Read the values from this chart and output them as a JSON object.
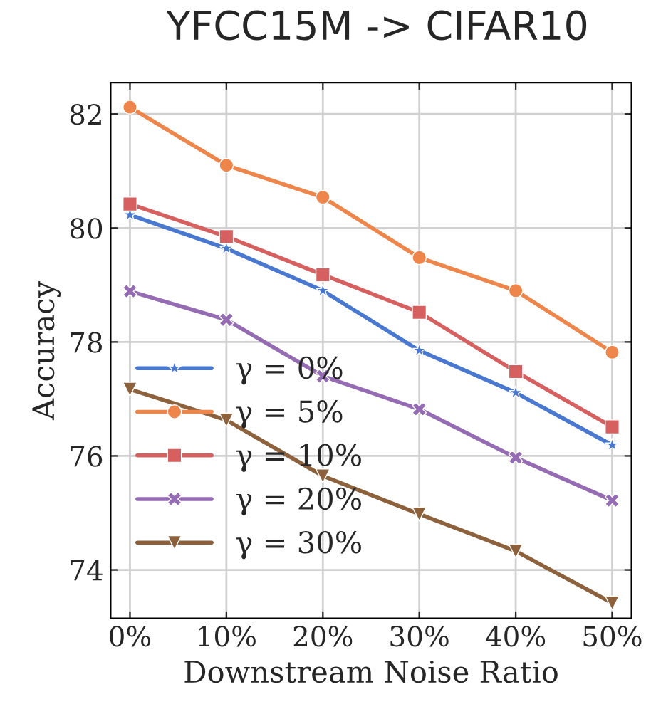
{
  "chart_data": {
    "type": "line",
    "title": "YFCC15M -> CIFAR10",
    "xlabel": "Downstream Noise Ratio",
    "ylabel": "Accuracy",
    "categories": [
      "0%",
      "10%",
      "20%",
      "30%",
      "40%",
      "50%"
    ],
    "series": [
      {
        "name": "γ = 0%",
        "color": "#4878d0",
        "marker": "star",
        "values": [
          80.23,
          79.64,
          78.9,
          77.85,
          77.11,
          76.19
        ]
      },
      {
        "name": "γ = 5%",
        "color": "#ee854a",
        "marker": "circle",
        "values": [
          82.12,
          81.1,
          80.54,
          79.48,
          78.9,
          77.82
        ]
      },
      {
        "name": "γ = 10%",
        "color": "#d65f5f",
        "marker": "square",
        "values": [
          80.42,
          79.85,
          79.18,
          78.52,
          77.48,
          76.51
        ]
      },
      {
        "name": "γ = 20%",
        "color": "#956cb4",
        "marker": "cross",
        "values": [
          78.89,
          78.39,
          77.4,
          76.82,
          75.97,
          75.22
        ]
      },
      {
        "name": "γ = 30%",
        "color": "#8c613c",
        "marker": "triangle",
        "values": [
          77.17,
          76.63,
          75.65,
          74.98,
          74.33,
          73.42
        ]
      }
    ],
    "ylim": [
      73.15,
      82.55
    ],
    "yticks": [
      74,
      76,
      78,
      80,
      82
    ],
    "grid": true,
    "legend": "center left",
    "line_style": "solid"
  }
}
